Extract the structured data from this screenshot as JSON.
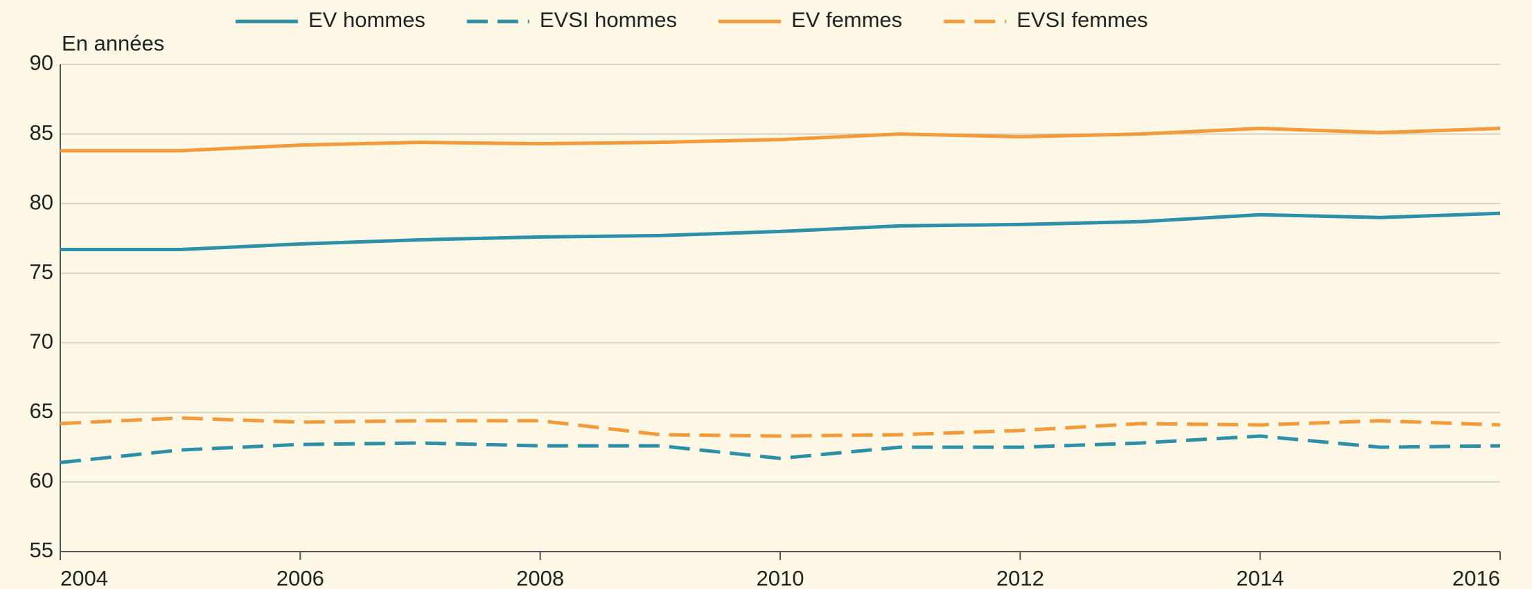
{
  "chart_data": {
    "type": "line",
    "y_label": "En années",
    "x": [
      2004,
      2005,
      2006,
      2007,
      2008,
      2009,
      2010,
      2011,
      2012,
      2013,
      2014,
      2015,
      2016
    ],
    "series": [
      {
        "name": "EV hommes",
        "color": "#2e8fa8",
        "dashed": false,
        "values": [
          76.7,
          76.7,
          77.1,
          77.4,
          77.6,
          77.7,
          78.0,
          78.4,
          78.5,
          78.7,
          79.2,
          79.0,
          79.3
        ]
      },
      {
        "name": "EVSI hommes",
        "color": "#2e8fa8",
        "dashed": true,
        "values": [
          61.4,
          62.3,
          62.7,
          62.8,
          62.6,
          62.6,
          61.7,
          62.5,
          62.5,
          62.8,
          63.3,
          62.5,
          62.6
        ]
      },
      {
        "name": "EV femmes",
        "color": "#f39a3a",
        "dashed": false,
        "values": [
          83.8,
          83.8,
          84.2,
          84.4,
          84.3,
          84.4,
          84.6,
          85.0,
          84.8,
          85.0,
          85.4,
          85.1,
          85.4
        ]
      },
      {
        "name": "EVSI femmes",
        "color": "#f39a3a",
        "dashed": true,
        "values": [
          64.2,
          64.6,
          64.3,
          64.4,
          64.4,
          63.4,
          63.3,
          63.4,
          63.7,
          64.2,
          64.1,
          64.4,
          64.1
        ]
      }
    ],
    "xlim": [
      2004,
      2016
    ],
    "xticks": [
      2004,
      2006,
      2008,
      2010,
      2012,
      2014,
      2016
    ],
    "ylim": [
      55,
      90
    ],
    "yticks": [
      55,
      60,
      65,
      70,
      75,
      80,
      85,
      90
    ],
    "grid": true,
    "legend": "top"
  }
}
